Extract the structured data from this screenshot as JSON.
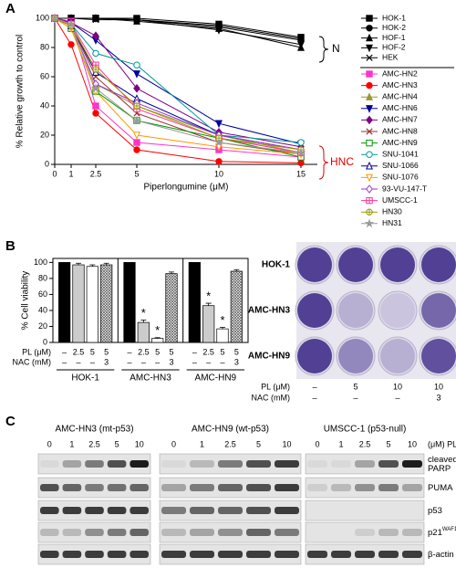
{
  "chart_data": [
    {
      "type": "line",
      "panel_label": "A",
      "ylabel": "% Relative growth to control",
      "xlabel": "Piperlongumine (μM)",
      "x": [
        0,
        1,
        2.5,
        5,
        10,
        15
      ],
      "xlim": [
        0,
        16
      ],
      "xticks": [
        0,
        1,
        2.5,
        5,
        10,
        15
      ],
      "ylim": [
        0,
        100
      ],
      "yticks": [
        0,
        20,
        40,
        60,
        80,
        100
      ],
      "legend": "right",
      "annotations": [
        {
          "text": "N",
          "color": "#000000"
        },
        {
          "text": "HNC",
          "color": "#dd0000"
        }
      ],
      "series": [
        {
          "name": "HOK-1",
          "color": "#000000",
          "marker": "square",
          "filled": true,
          "values": [
            100,
            100,
            100,
            100,
            96,
            87
          ]
        },
        {
          "name": "HOK-2",
          "color": "#000000",
          "marker": "circle",
          "filled": true,
          "values": [
            100,
            100,
            100,
            99,
            94,
            85
          ]
        },
        {
          "name": "HOF-1",
          "color": "#000000",
          "marker": "triangle",
          "filled": true,
          "values": [
            100,
            100,
            100,
            98,
            93,
            80
          ]
        },
        {
          "name": "HOF-2",
          "color": "#000000",
          "marker": "triangle-down",
          "filled": true,
          "values": [
            100,
            100,
            100,
            99,
            92,
            82
          ]
        },
        {
          "name": "HEK",
          "color": "#000000",
          "marker": "x",
          "filled": false,
          "values": [
            100,
            100,
            99,
            99,
            95,
            86
          ]
        },
        {
          "name": "AMC-HN2",
          "color": "#ff33cc",
          "marker": "square",
          "filled": true,
          "values": [
            100,
            98,
            40,
            15,
            10,
            5
          ]
        },
        {
          "name": "AMC-HN3",
          "color": "#ff0000",
          "marker": "circle",
          "filled": true,
          "values": [
            100,
            82,
            35,
            10,
            2,
            1
          ]
        },
        {
          "name": "AMC-HN4",
          "color": "#999933",
          "marker": "triangle",
          "filled": true,
          "values": [
            100,
            95,
            55,
            40,
            20,
            8
          ]
        },
        {
          "name": "AMC-HN6",
          "color": "#000099",
          "marker": "triangle-down",
          "filled": true,
          "values": [
            100,
            97,
            85,
            62,
            28,
            14
          ]
        },
        {
          "name": "AMC-HN7",
          "color": "#800080",
          "marker": "diamond",
          "filled": true,
          "values": [
            100,
            97,
            88,
            52,
            22,
            12
          ]
        },
        {
          "name": "AMC-HN8",
          "color": "#993333",
          "marker": "x",
          "filled": false,
          "values": [
            100,
            95,
            60,
            35,
            15,
            7
          ]
        },
        {
          "name": "AMC-HN9",
          "color": "#009900",
          "marker": "square",
          "filled": false,
          "values": [
            100,
            93,
            50,
            30,
            18,
            5
          ]
        },
        {
          "name": "SNU-1041",
          "color": "#009999",
          "marker": "circle",
          "filled": false,
          "values": [
            100,
            96,
            76,
            68,
            20,
            15
          ]
        },
        {
          "name": "SNU-1066",
          "color": "#000099",
          "marker": "triangle",
          "filled": false,
          "values": [
            100,
            95,
            63,
            45,
            20,
            10
          ]
        },
        {
          "name": "SNU-1076",
          "color": "#ff9900",
          "marker": "triangle-down",
          "filled": false,
          "values": [
            100,
            93,
            50,
            20,
            12,
            7
          ]
        },
        {
          "name": "93-VU-147-T",
          "color": "#9933cc",
          "marker": "diamond",
          "filled": false,
          "values": [
            100,
            95,
            55,
            42,
            20,
            10
          ]
        },
        {
          "name": "UMSCC-1",
          "color": "#ff3399",
          "marker": "square-plus",
          "filled": false,
          "values": [
            100,
            96,
            68,
            38,
            18,
            8
          ]
        },
        {
          "name": "HN30",
          "color": "#999900",
          "marker": "circle-plus",
          "filled": false,
          "values": [
            100,
            95,
            65,
            40,
            18,
            10
          ]
        },
        {
          "name": "HN31",
          "color": "#999999",
          "marker": "star",
          "filled": true,
          "values": [
            100,
            96,
            52,
            30,
            15,
            8
          ]
        }
      ]
    },
    {
      "type": "bar",
      "panel_label": "B",
      "ylabel": "% Cell viability",
      "ylim": [
        0,
        105
      ],
      "yticks": [
        0,
        20,
        40,
        60,
        80,
        100
      ],
      "groups": [
        "HOK-1",
        "AMC-HN3",
        "AMC-HN9"
      ],
      "conditions": [
        {
          "label": "PL (μM)",
          "values": [
            "–",
            "2.5",
            "5",
            "5"
          ]
        },
        {
          "label": "NAC (mM)",
          "values": [
            "–",
            "–",
            "–",
            "3"
          ]
        }
      ],
      "significance_label": "*",
      "series": [
        {
          "color": "#000000",
          "pattern": "solid",
          "values": [
            100,
            100,
            100
          ],
          "errors": [
            0,
            0,
            0
          ],
          "significant": [
            false,
            false,
            false
          ]
        },
        {
          "color": "#cccccc",
          "pattern": "solid",
          "values": [
            97,
            25,
            46
          ],
          "errors": [
            2,
            3,
            3
          ],
          "significant": [
            false,
            true,
            true
          ]
        },
        {
          "color": "#ffffff",
          "pattern": "solid",
          "values": [
            95,
            5,
            17
          ],
          "errors": [
            2,
            1,
            2
          ],
          "significant": [
            false,
            true,
            true
          ]
        },
        {
          "color": "#666666",
          "pattern": "hatch",
          "values": [
            97,
            86,
            89
          ],
          "errors": [
            2,
            2,
            2
          ],
          "significant": [
            false,
            false,
            false
          ]
        }
      ]
    }
  ],
  "well_plate": {
    "rows": [
      "HOK-1",
      "AMC-HN3",
      "AMC-HN9"
    ],
    "conditions": [
      {
        "label": "PL (μM)",
        "values": [
          "–",
          "5",
          "10",
          "10"
        ]
      },
      {
        "label": "NAC (mM)",
        "values": [
          "–",
          "–",
          "–",
          "3"
        ]
      }
    ]
  },
  "western_blot": {
    "panel_label": "C",
    "unit_label": "(μM) PL",
    "groups": [
      "AMC-HN3 (mt-p53)",
      "AMC-HN9 (wt-p53)",
      "UMSCC-1 (p53-null)"
    ],
    "doses": [
      "0",
      "1",
      "2.5",
      "5",
      "10"
    ],
    "rows": [
      {
        "lines": [
          "cleaved",
          "PARP"
        ]
      },
      {
        "lines": [
          "PUMA"
        ]
      },
      {
        "lines": [
          "p53"
        ]
      },
      {
        "lines": [
          "p21"
        ],
        "sup": "WAF1"
      },
      {
        "lines": [
          "β-actin"
        ]
      }
    ]
  }
}
